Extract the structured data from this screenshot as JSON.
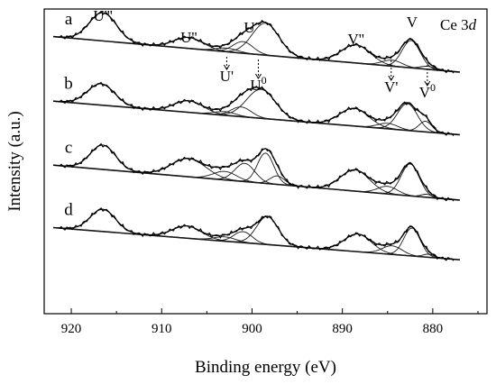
{
  "chart_data": {
    "type": "line",
    "title": "",
    "xlabel": "Binding energy (eV)",
    "ylabel": "Intensity (a.u.)",
    "xlim": [
      923,
      874
    ],
    "x_reversed": true,
    "xticks": [
      920,
      910,
      900,
      890,
      880
    ],
    "tick_labels": [
      "920",
      "910",
      "900",
      "890",
      "880"
    ],
    "yticks_shown": false,
    "grid": false,
    "annotation": {
      "text": "Ce 3",
      "italic_suffix": "d"
    },
    "peak_labels_top": [
      {
        "text": "U'''",
        "energy": 916.5
      },
      {
        "text": "U''",
        "energy": 907.0
      },
      {
        "text": "U",
        "energy": 900.3
      },
      {
        "text": "V''",
        "energy": 888.5
      },
      {
        "text": "V",
        "energy": 882.3
      }
    ],
    "peak_labels_bottom": [
      {
        "text": "U'",
        "energy": 902.8
      },
      {
        "text": "U",
        "superscript": "0",
        "energy": 899.3
      },
      {
        "text": "V'",
        "energy": 884.6
      },
      {
        "text": "V",
        "superscript": "0",
        "energy": 880.6
      }
    ],
    "series": [
      {
        "name": "a",
        "baseline": [
          [
            923,
            0.912
          ],
          [
            874,
            0.785
          ]
        ],
        "peaks": [
          {
            "E": 916.5,
            "h": 0.093,
            "w": 1.5
          },
          {
            "E": 907.0,
            "h": 0.036,
            "w": 1.6
          },
          {
            "E": 902.8,
            "h": 0.012,
            "w": 1.2
          },
          {
            "E": 901.0,
            "h": 0.038,
            "w": 1.1
          },
          {
            "E": 898.5,
            "h": 0.105,
            "w": 1.5
          },
          {
            "E": 888.5,
            "h": 0.06,
            "w": 1.6
          },
          {
            "E": 884.5,
            "h": 0.02,
            "w": 1.1
          },
          {
            "E": 882.4,
            "h": 0.09,
            "w": 1.0
          },
          {
            "E": 880.6,
            "h": 0.01,
            "w": 0.8
          }
        ]
      },
      {
        "name": "b",
        "baseline": [
          [
            923,
            0.7
          ],
          [
            874,
            0.58
          ]
        ],
        "peaks": [
          {
            "E": 916.7,
            "h": 0.07,
            "w": 1.5
          },
          {
            "E": 907.0,
            "h": 0.038,
            "w": 1.6
          },
          {
            "E": 903.0,
            "h": 0.012,
            "w": 1.2
          },
          {
            "E": 901.2,
            "h": 0.032,
            "w": 1.1
          },
          {
            "E": 899.0,
            "h": 0.095,
            "w": 1.6
          },
          {
            "E": 888.7,
            "h": 0.058,
            "w": 1.6
          },
          {
            "E": 885.0,
            "h": 0.018,
            "w": 1.1
          },
          {
            "E": 882.8,
            "h": 0.088,
            "w": 1.1
          },
          {
            "E": 880.8,
            "h": 0.035,
            "w": 0.7
          }
        ]
      },
      {
        "name": "c",
        "baseline": [
          [
            923,
            0.49
          ],
          [
            874,
            0.365
          ]
        ],
        "peaks": [
          {
            "E": 916.5,
            "h": 0.08,
            "w": 1.4
          },
          {
            "E": 907.0,
            "h": 0.06,
            "w": 1.9
          },
          {
            "E": 903.0,
            "h": 0.028,
            "w": 1.3
          },
          {
            "E": 900.8,
            "h": 0.06,
            "w": 1.1
          },
          {
            "E": 898.5,
            "h": 0.1,
            "w": 0.9
          },
          {
            "E": 897.2,
            "h": 0.028,
            "w": 0.8
          },
          {
            "E": 888.6,
            "h": 0.07,
            "w": 1.6
          },
          {
            "E": 885.0,
            "h": 0.025,
            "w": 1.1
          },
          {
            "E": 882.5,
            "h": 0.105,
            "w": 1.0
          },
          {
            "E": 880.7,
            "h": 0.01,
            "w": 0.6
          }
        ]
      },
      {
        "name": "d",
        "baseline": [
          [
            923,
            0.285
          ],
          [
            874,
            0.17
          ]
        ],
        "peaks": [
          {
            "E": 916.5,
            "h": 0.073,
            "w": 1.4
          },
          {
            "E": 907.2,
            "h": 0.04,
            "w": 1.6
          },
          {
            "E": 903.0,
            "h": 0.014,
            "w": 1.2
          },
          {
            "E": 901.0,
            "h": 0.036,
            "w": 1.0
          },
          {
            "E": 898.3,
            "h": 0.092,
            "w": 1.2
          },
          {
            "E": 888.3,
            "h": 0.058,
            "w": 1.5
          },
          {
            "E": 884.5,
            "h": 0.028,
            "w": 1.1
          },
          {
            "E": 882.3,
            "h": 0.092,
            "w": 0.9
          },
          {
            "E": 880.5,
            "h": 0.01,
            "w": 0.6
          }
        ]
      }
    ]
  }
}
